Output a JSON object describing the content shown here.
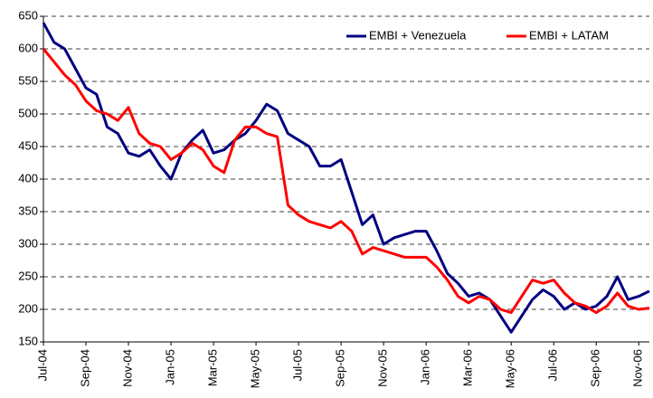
{
  "chart_data": {
    "type": "line",
    "categories": [
      "Jul-04",
      null,
      null,
      null,
      "Sep-04",
      null,
      null,
      null,
      "Nov-04",
      null,
      null,
      null,
      "Jan-05",
      null,
      null,
      null,
      "Mar-05",
      null,
      null,
      null,
      "May-05",
      null,
      null,
      null,
      "Jul-05",
      null,
      null,
      null,
      "Sep-05",
      null,
      null,
      null,
      "Nov-05",
      null,
      null,
      null,
      "Jan-06",
      null,
      null,
      null,
      "Mar-06",
      null,
      null,
      null,
      "May-06",
      null,
      null,
      null,
      "Jul-06",
      null,
      null,
      null,
      "Sep-06",
      null,
      null,
      null,
      "Nov-06",
      null
    ],
    "series": [
      {
        "name": "EMBI + Venezuela",
        "color": "#000080",
        "values": [
          640,
          610,
          600,
          570,
          540,
          530,
          480,
          470,
          440,
          435,
          445,
          420,
          400,
          440,
          460,
          475,
          440,
          445,
          460,
          470,
          490,
          515,
          505,
          470,
          460,
          450,
          420,
          420,
          430,
          380,
          330,
          345,
          300,
          310,
          315,
          320,
          320,
          290,
          255,
          240,
          220,
          225,
          215,
          190,
          165,
          190,
          215,
          230,
          220,
          200,
          210,
          200,
          205,
          220,
          250,
          215,
          220,
          228
        ]
      },
      {
        "name": "EMBI + LATAM",
        "color": "#ff0000",
        "values": [
          600,
          580,
          560,
          545,
          520,
          505,
          500,
          490,
          510,
          470,
          455,
          450,
          430,
          440,
          455,
          445,
          420,
          410,
          460,
          480,
          480,
          470,
          465,
          360,
          345,
          335,
          330,
          325,
          335,
          320,
          285,
          295,
          290,
          285,
          280,
          280,
          280,
          265,
          245,
          220,
          210,
          220,
          215,
          200,
          195,
          220,
          245,
          240,
          245,
          225,
          210,
          205,
          195,
          205,
          225,
          205,
          200,
          202
        ]
      }
    ],
    "ylim": [
      150,
      650
    ],
    "yticks": [
      150,
      200,
      250,
      300,
      350,
      400,
      450,
      500,
      550,
      600,
      650
    ],
    "grid": true,
    "legend": "top-right"
  }
}
